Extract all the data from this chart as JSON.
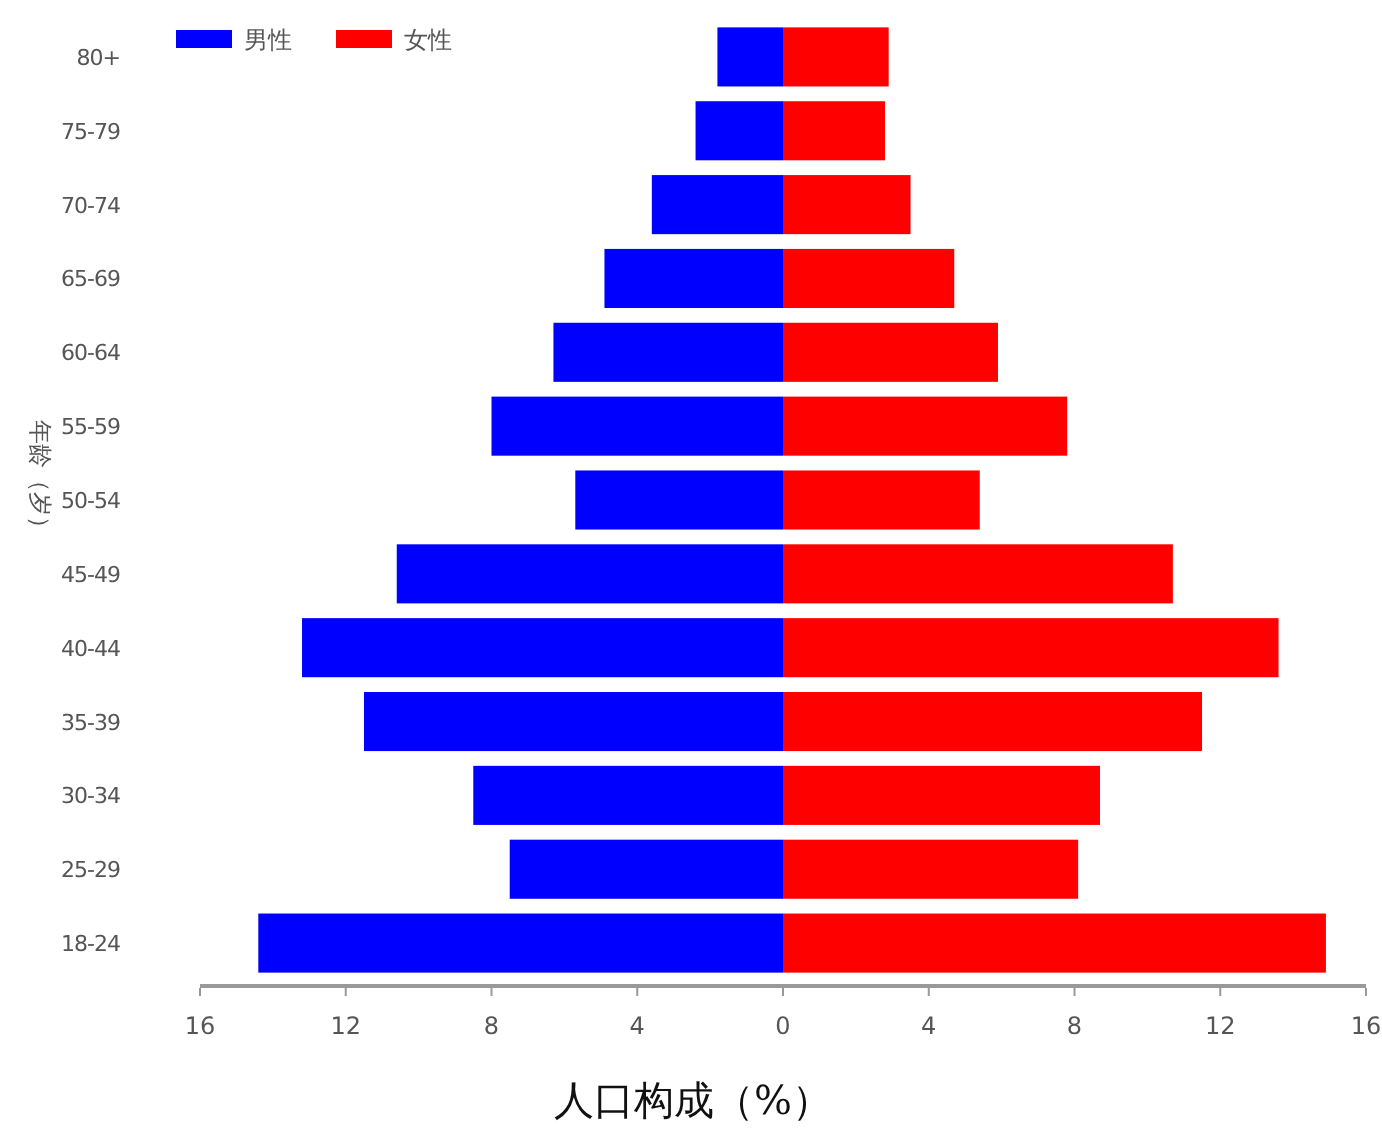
{
  "chart_data": {
    "type": "bar",
    "orientation": "horizontal",
    "xlabel": "人口构成（%）",
    "ylabel": "年龄（岁）",
    "categories": [
      "80+",
      "75-79",
      "70-74",
      "65-69",
      "60-64",
      "55-59",
      "50-54",
      "45-49",
      "40-44",
      "35-39",
      "30-34",
      "25-29",
      "18-24"
    ],
    "series": [
      {
        "name": "男性",
        "color": "#0000ff",
        "values": [
          -1.8,
          -2.4,
          -3.6,
          -4.9,
          -6.3,
          -8.0,
          -5.7,
          -10.6,
          -13.2,
          -11.5,
          -8.5,
          -7.5,
          -14.4
        ]
      },
      {
        "name": "女性",
        "color": "#ff0000",
        "values": [
          2.9,
          2.8,
          3.5,
          4.7,
          5.9,
          7.8,
          5.4,
          10.7,
          13.6,
          11.5,
          8.7,
          8.1,
          14.9
        ]
      }
    ],
    "xlim": [
      -16,
      16
    ],
    "xticks": [
      {
        "value": -16,
        "label": "16"
      },
      {
        "value": -12,
        "label": "12"
      },
      {
        "value": -8,
        "label": "8"
      },
      {
        "value": -4,
        "label": "4"
      },
      0,
      4,
      8,
      12,
      16
    ],
    "stacked": true,
    "legend": "top left",
    "grid": false
  }
}
